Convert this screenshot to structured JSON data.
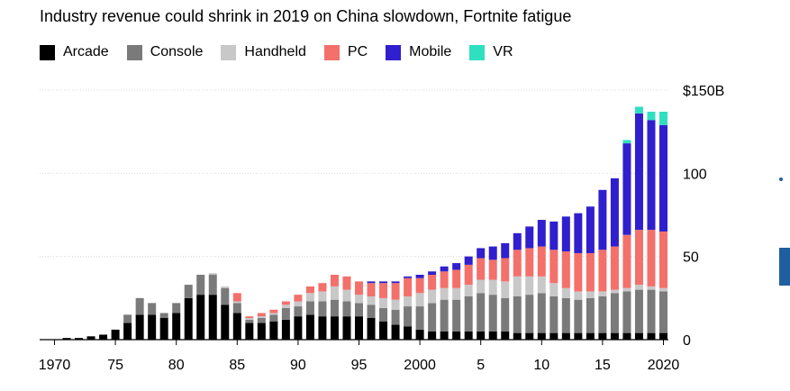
{
  "chart_data": {
    "type": "bar",
    "stacked": true,
    "title": "Industry revenue could shrink in 2019 on China slowdown, Fortnite fatigue",
    "legend_position": "top-left",
    "ylim": [
      0,
      150
    ],
    "yticks": [
      {
        "value": 0,
        "label": "0"
      },
      {
        "value": 50,
        "label": "50"
      },
      {
        "value": 100,
        "label": "100"
      },
      {
        "value": 150,
        "label": "$150B"
      }
    ],
    "xticks": [
      {
        "year": 1970,
        "label": "1970"
      },
      {
        "year": 1975,
        "label": "75"
      },
      {
        "year": 1980,
        "label": "80"
      },
      {
        "year": 1985,
        "label": "85"
      },
      {
        "year": 1990,
        "label": "90"
      },
      {
        "year": 1995,
        "label": "95"
      },
      {
        "year": 2000,
        "label": "2000"
      },
      {
        "year": 2005,
        "label": "5"
      },
      {
        "year": 2010,
        "label": "10"
      },
      {
        "year": 2015,
        "label": "15"
      },
      {
        "year": 2020,
        "label": "2020"
      }
    ],
    "x": [
      1971,
      1972,
      1973,
      1974,
      1975,
      1976,
      1977,
      1978,
      1979,
      1980,
      1981,
      1982,
      1983,
      1984,
      1985,
      1986,
      1987,
      1988,
      1989,
      1990,
      1991,
      1992,
      1993,
      1994,
      1995,
      1996,
      1997,
      1998,
      1999,
      2000,
      2001,
      2002,
      2003,
      2004,
      2005,
      2006,
      2007,
      2008,
      2009,
      2010,
      2011,
      2012,
      2013,
      2014,
      2015,
      2016,
      2017,
      2018,
      2019,
      2020
    ],
    "series": [
      {
        "name": "Arcade",
        "color": "#000000",
        "values": [
          1,
          1,
          2,
          3,
          6,
          10,
          15,
          15,
          13,
          16,
          25,
          27,
          27,
          21,
          16,
          10,
          10,
          11,
          12,
          14,
          15,
          14,
          14,
          14,
          14,
          13,
          11,
          9,
          8,
          6,
          5,
          5,
          5,
          5,
          5,
          5,
          5,
          4,
          4,
          4,
          4,
          4,
          4,
          4,
          4,
          4,
          4,
          4,
          4,
          4
        ]
      },
      {
        "name": "Console",
        "color": "#7a7a7a",
        "values": [
          0,
          0,
          0,
          0,
          0,
          5,
          10,
          7,
          3,
          6,
          8,
          12,
          12,
          10,
          6,
          2,
          3,
          4,
          7,
          6,
          8,
          9,
          10,
          9,
          8,
          8,
          8,
          9,
          12,
          14,
          17,
          19,
          19,
          21,
          23,
          22,
          20,
          22,
          23,
          24,
          22,
          21,
          20,
          21,
          22,
          24,
          25,
          26,
          26,
          25
        ]
      },
      {
        "name": "Handheld",
        "color": "#c8c8c8",
        "values": [
          0,
          0,
          0,
          0,
          0,
          0,
          0,
          0,
          0,
          0,
          0,
          0,
          1,
          1,
          1,
          1,
          1,
          1,
          2,
          3,
          5,
          6,
          8,
          7,
          5,
          5,
          6,
          6,
          6,
          8,
          8,
          7,
          7,
          7,
          8,
          9,
          10,
          12,
          11,
          10,
          8,
          6,
          5,
          4,
          3,
          2,
          2,
          3,
          2,
          2
        ]
      },
      {
        "name": "PC",
        "color": "#f4706b",
        "values": [
          0,
          0,
          0,
          0,
          0,
          0,
          0,
          0,
          0,
          0,
          0,
          0,
          0,
          0,
          5,
          1,
          2,
          2,
          2,
          4,
          4,
          5,
          7,
          8,
          8,
          8,
          9,
          10,
          11,
          9,
          9,
          10,
          11,
          12,
          13,
          12,
          14,
          16,
          17,
          18,
          20,
          22,
          23,
          23,
          25,
          26,
          32,
          33,
          34,
          34
        ]
      },
      {
        "name": "Mobile",
        "color": "#2f1fcf",
        "values": [
          0,
          0,
          0,
          0,
          0,
          0,
          0,
          0,
          0,
          0,
          0,
          0,
          0,
          0,
          0,
          0,
          0,
          0,
          0,
          0,
          0,
          0,
          0,
          0,
          0,
          1,
          1,
          1,
          1,
          2,
          2,
          3,
          4,
          5,
          6,
          8,
          9,
          10,
          13,
          16,
          17,
          21,
          24,
          28,
          36,
          41,
          55,
          70,
          66,
          64
        ]
      },
      {
        "name": "VR",
        "color": "#2fe0c0",
        "values": [
          0,
          0,
          0,
          0,
          0,
          0,
          0,
          0,
          0,
          0,
          0,
          0,
          0,
          0,
          0,
          0,
          0,
          0,
          0,
          0,
          0,
          0,
          0,
          0,
          0,
          0,
          0,
          0,
          0,
          0,
          0,
          0,
          0,
          0,
          0,
          0,
          0,
          0,
          0,
          0,
          0,
          0,
          0,
          0,
          0,
          0,
          2,
          4,
          5,
          8
        ]
      }
    ]
  }
}
